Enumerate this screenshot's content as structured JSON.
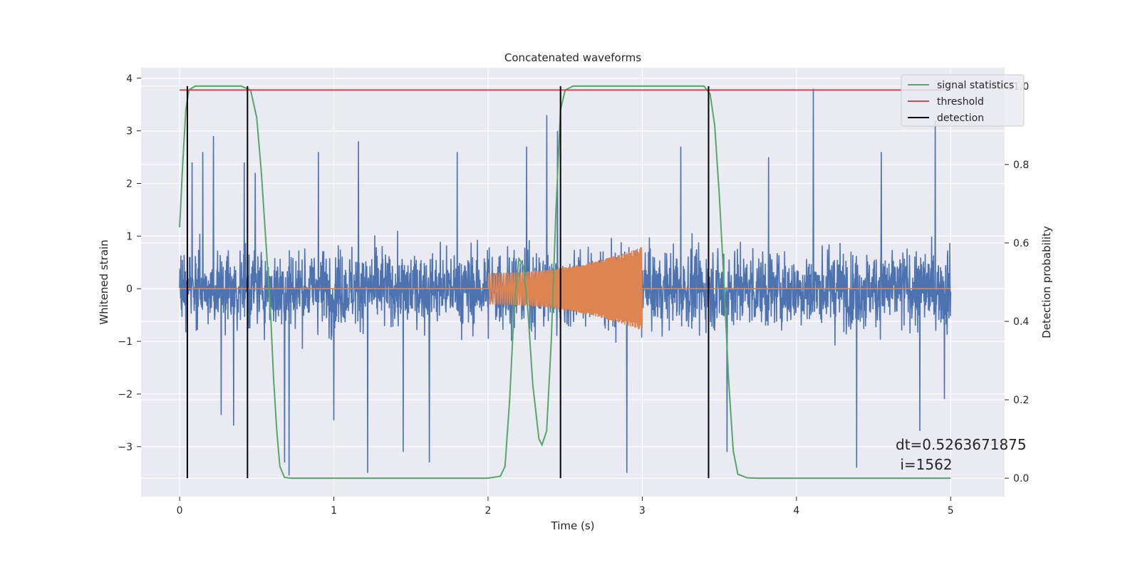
{
  "chart_data": {
    "type": "line",
    "title": "Concatenated waveforms",
    "xlabel": "Time (s)",
    "ylabel": "Whitened strain",
    "y2label": "Detection probability",
    "xlim": [
      -0.25,
      5.35
    ],
    "ylim": [
      -3.95,
      4.2
    ],
    "y2lim": [
      -0.047,
      1.047
    ],
    "xticks": [
      "0",
      "1",
      "2",
      "3",
      "4",
      "5"
    ],
    "xtick_values": [
      0,
      1,
      2,
      3,
      4,
      5
    ],
    "yticks": [
      "4",
      "3",
      "2",
      "1",
      "0",
      "−1",
      "−2",
      "−3"
    ],
    "ytick_values": [
      4,
      3,
      2,
      1,
      0,
      -1,
      -2,
      -3
    ],
    "y2ticks": [
      "1.0",
      "0.8",
      "0.6",
      "0.4",
      "0.2",
      "0.0"
    ],
    "y2tick_values": [
      1.0,
      0.8,
      0.6,
      0.4,
      0.2,
      0.0
    ],
    "grid": true,
    "legend_position": "top-right",
    "series": [
      {
        "name": "",
        "role": "whitened-strain-noise",
        "axis": "left",
        "color": "#4c72b0",
        "x_range": [
          0,
          5
        ],
        "peak_points": [
          {
            "x": 0.08,
            "y": 2.4
          },
          {
            "x": 0.15,
            "y": 2.6
          },
          {
            "x": 0.22,
            "y": 2.9
          },
          {
            "x": 0.27,
            "y": -2.4
          },
          {
            "x": 0.35,
            "y": -2.6
          },
          {
            "x": 0.42,
            "y": 2.4
          },
          {
            "x": 0.49,
            "y": 2.2
          },
          {
            "x": 0.68,
            "y": -3.3
          },
          {
            "x": 0.71,
            "y": -3.6
          },
          {
            "x": 0.9,
            "y": 2.6
          },
          {
            "x": 1.0,
            "y": -2.5
          },
          {
            "x": 1.16,
            "y": 2.8
          },
          {
            "x": 1.22,
            "y": -3.5
          },
          {
            "x": 1.45,
            "y": -3.1
          },
          {
            "x": 1.62,
            "y": -3.3
          },
          {
            "x": 1.8,
            "y": 2.6
          },
          {
            "x": 2.25,
            "y": 2.7
          },
          {
            "x": 2.38,
            "y": 3.3
          },
          {
            "x": 2.45,
            "y": 3.0
          },
          {
            "x": 2.9,
            "y": -3.5
          },
          {
            "x": 3.25,
            "y": 2.7
          },
          {
            "x": 3.55,
            "y": -3.1
          },
          {
            "x": 3.82,
            "y": 2.5
          },
          {
            "x": 4.11,
            "y": 3.8
          },
          {
            "x": 4.39,
            "y": -3.4
          },
          {
            "x": 4.55,
            "y": 2.6
          },
          {
            "x": 4.8,
            "y": -2.7
          },
          {
            "x": 4.9,
            "y": 3.2
          },
          {
            "x": 4.96,
            "y": -2.1
          }
        ]
      },
      {
        "name": "",
        "role": "injected-chirp",
        "axis": "left",
        "color": "#dd8452",
        "chirp_start": 2.0,
        "chirp_end": 3.0,
        "start_amplitude": 0.3,
        "end_amplitude": 0.8
      },
      {
        "name": "signal statistics",
        "axis": "right",
        "color": "#55a868",
        "points": [
          [
            0.0,
            0.64
          ],
          [
            0.02,
            0.8
          ],
          [
            0.04,
            0.94
          ],
          [
            0.06,
            0.99
          ],
          [
            0.1,
            1.0
          ],
          [
            0.4,
            1.0
          ],
          [
            0.46,
            0.99
          ],
          [
            0.5,
            0.92
          ],
          [
            0.53,
            0.78
          ],
          [
            0.56,
            0.6
          ],
          [
            0.59,
            0.42
          ],
          [
            0.61,
            0.25
          ],
          [
            0.63,
            0.12
          ],
          [
            0.65,
            0.03
          ],
          [
            0.68,
            0.002
          ],
          [
            0.72,
            0.0
          ],
          [
            2.0,
            0.0
          ],
          [
            2.08,
            0.005
          ],
          [
            2.11,
            0.03
          ],
          [
            2.14,
            0.2
          ],
          [
            2.17,
            0.44
          ],
          [
            2.2,
            0.56
          ],
          [
            2.23,
            0.54
          ],
          [
            2.26,
            0.42
          ],
          [
            2.29,
            0.24
          ],
          [
            2.33,
            0.1
          ],
          [
            2.35,
            0.085
          ],
          [
            2.38,
            0.12
          ],
          [
            2.41,
            0.35
          ],
          [
            2.44,
            0.68
          ],
          [
            2.47,
            0.94
          ],
          [
            2.5,
            0.99
          ],
          [
            2.55,
            1.0
          ],
          [
            3.4,
            1.0
          ],
          [
            3.44,
            0.98
          ],
          [
            3.47,
            0.9
          ],
          [
            3.5,
            0.72
          ],
          [
            3.53,
            0.5
          ],
          [
            3.56,
            0.25
          ],
          [
            3.59,
            0.07
          ],
          [
            3.62,
            0.01
          ],
          [
            3.68,
            0.001
          ],
          [
            3.75,
            0.0
          ],
          [
            5.0,
            0.0
          ]
        ]
      },
      {
        "name": "threshold",
        "axis": "right",
        "color": "#c44e52",
        "x": [
          0,
          5
        ],
        "values": [
          0.99,
          0.99
        ]
      },
      {
        "name": "detection",
        "axis": "right",
        "color": "#000000",
        "x": [
          0.05,
          0.44,
          2.47,
          3.43
        ],
        "values": [
          1.0,
          1.0,
          1.0,
          1.0
        ]
      }
    ],
    "annotations": [
      "dt=0.5263671875",
      " i=1562"
    ]
  }
}
